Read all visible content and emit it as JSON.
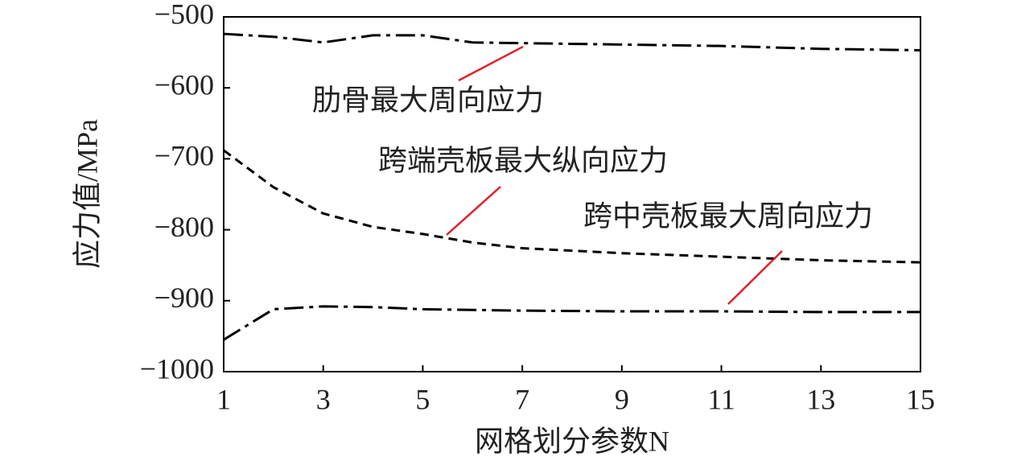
{
  "chart_data": {
    "type": "line",
    "xlabel": "网格划分参数N",
    "ylabel": "应力值/MPa",
    "xlim": [
      1,
      15
    ],
    "xticks": [
      1,
      3,
      5,
      7,
      9,
      11,
      13,
      15
    ],
    "ylim": [
      -1000,
      -500
    ],
    "yticks": [
      {
        "value": -500,
        "label": "−500"
      },
      {
        "value": -600,
        "label": "−600"
      },
      {
        "value": -700,
        "label": "−700"
      },
      {
        "value": -800,
        "label": "−800"
      },
      {
        "value": -900,
        "label": "−900"
      },
      {
        "value": -1000,
        "label": "−1000"
      }
    ],
    "series": [
      {
        "name": "肋骨最大周向应力",
        "color": "#000000",
        "dash": "dashdot",
        "x": [
          1,
          2,
          3,
          4,
          5,
          6,
          7,
          9,
          11,
          13,
          15
        ],
        "values": [
          -524,
          -528,
          -536,
          -526,
          -526,
          -536,
          -537,
          -539,
          -541,
          -545,
          -547
        ]
      },
      {
        "name": "跨端壳板最大纵向应力",
        "color": "#000000",
        "dash": "dashed",
        "x": [
          1,
          2,
          3,
          4,
          5,
          6,
          7,
          9,
          11,
          13,
          15
        ],
        "values": [
          -688,
          -740,
          -777,
          -796,
          -806,
          -818,
          -826,
          -833,
          -838,
          -843,
          -846
        ]
      },
      {
        "name": "跨中壳板最大周向应力",
        "color": "#000000",
        "dash": "dashdot",
        "x": [
          1,
          2,
          3,
          4,
          5,
          6,
          7,
          9,
          11,
          13,
          15
        ],
        "values": [
          -955,
          -912,
          -908,
          -909,
          -912,
          -913,
          -914,
          -915,
          -915,
          -916,
          -916
        ]
      }
    ],
    "annotation_color": "#e0202a"
  }
}
